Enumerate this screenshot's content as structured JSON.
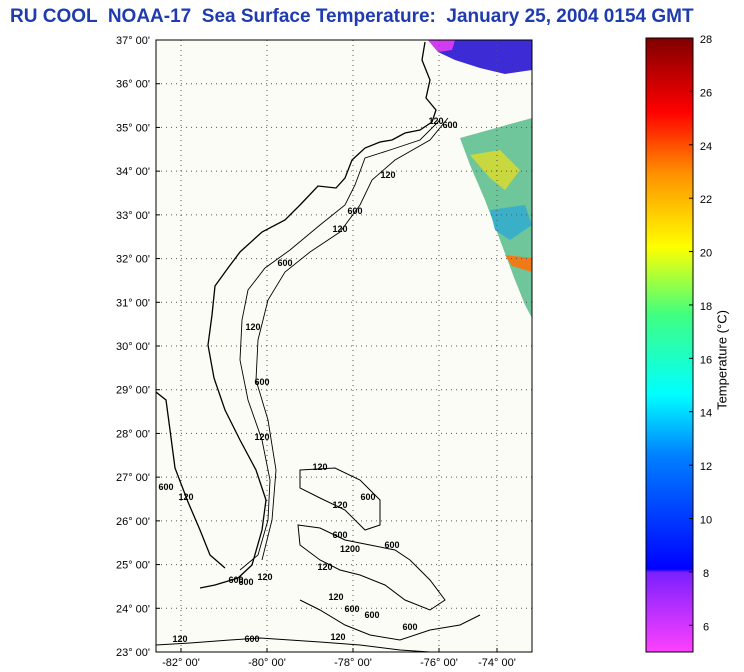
{
  "title": "RU COOL  NOAA-17  Sea Surface Temperature:  January 25, 2004 0154 GMT",
  "map": {
    "lat_ticks": [
      "37° 00'",
      "36° 00'",
      "35° 00'",
      "34° 00'",
      "33° 00'",
      "32° 00'",
      "31° 00'",
      "30° 00'",
      "29° 00'",
      "28° 00'",
      "27° 00'",
      "26° 00'",
      "25° 00'",
      "24° 00'",
      "23° 00'"
    ],
    "lon_ticks": [
      "-82° 00'",
      "-80° 00'",
      "-78° 00'",
      "-76° 00'",
      "-74° 00'"
    ],
    "grid": true,
    "isobath_labels": [
      "120",
      "600",
      "120",
      "600",
      "120",
      "600",
      "120",
      "600",
      "120",
      "600",
      "120",
      "120",
      "600",
      "120",
      "600",
      "120",
      "600",
      "1200",
      "600",
      "120",
      "600",
      "600",
      "120",
      "600",
      "600",
      "120",
      "120",
      "600"
    ],
    "land_color": "#ffffff",
    "background_color": "#fcfcf6"
  },
  "colorbar": {
    "label": "Temperature (°C)",
    "ticks": [
      "28",
      "26",
      "24",
      "22",
      "20",
      "18",
      "16",
      "14",
      "12",
      "10",
      "8",
      "6"
    ],
    "range": [
      5,
      28
    ]
  }
}
